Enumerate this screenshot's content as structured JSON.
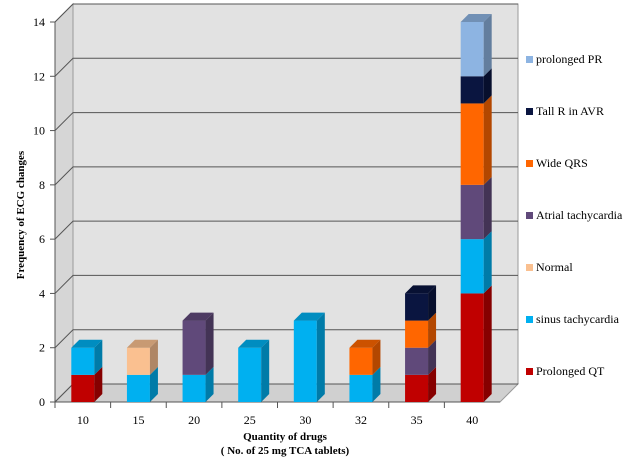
{
  "chart_data": {
    "type": "bar",
    "stacked": true,
    "three_d": true,
    "categories": [
      "10",
      "15",
      "20",
      "25",
      "30",
      "32",
      "35",
      "40"
    ],
    "series": [
      {
        "name": "Prolonged QT",
        "color": "#C00000",
        "values": [
          1,
          0,
          0,
          0,
          0,
          0,
          1,
          4
        ]
      },
      {
        "name": "sinus tachycardia",
        "color": "#00B0F0",
        "values": [
          1,
          1,
          1,
          2,
          3,
          1,
          0,
          2
        ]
      },
      {
        "name": "Normal",
        "color": "#FAC090",
        "values": [
          0,
          1,
          0,
          0,
          0,
          0,
          0,
          0
        ]
      },
      {
        "name": "Atrial tachycardia",
        "color": "#60497A",
        "values": [
          0,
          0,
          2,
          0,
          0,
          0,
          1,
          2
        ]
      },
      {
        "name": "Wide QRS",
        "color": "#FF6600",
        "values": [
          0,
          0,
          0,
          0,
          0,
          1,
          1,
          3
        ]
      },
      {
        "name": "Tall R in AVR",
        "color": "#0A1540",
        "values": [
          0,
          0,
          0,
          0,
          0,
          0,
          1,
          1
        ]
      },
      {
        "name": "prolonged PR",
        "color": "#8DB4E2",
        "values": [
          0,
          0,
          0,
          0,
          0,
          0,
          0,
          2
        ]
      }
    ],
    "ylabel": "Frequency of ECG changes",
    "xlabel_line1": "Quantity of drugs",
    "xlabel_line2": "( No. of 25 mg TCA tablets)",
    "ylim": [
      0,
      14
    ],
    "yticks": [
      0,
      2,
      4,
      6,
      8,
      10,
      12,
      14
    ],
    "grid": true,
    "legend_position": "right"
  }
}
